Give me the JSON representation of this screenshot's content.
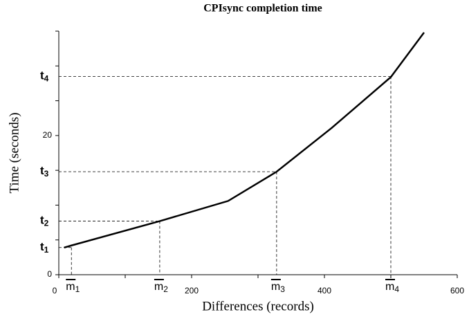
{
  "chart_data": {
    "type": "line",
    "title": "CPIsync completion time",
    "xlabel": "Differences (records)",
    "ylabel": "Time (seconds)",
    "x": [
      8,
      19,
      152,
      255,
      328,
      411,
      500,
      550
    ],
    "series": [
      {
        "name": "CPIsync",
        "color": "#000000",
        "values": [
          3.9,
          4.2,
          7.7,
          10.6,
          14.8,
          21.1,
          28.4,
          34.8
        ]
      }
    ],
    "xlim": [
      0,
      600
    ],
    "xticks": [
      0,
      200,
      400,
      600
    ],
    "xminorticks": [
      100,
      300,
      500
    ],
    "ylim": [
      0,
      35
    ],
    "yticks": [
      0,
      20
    ],
    "yminorticks": [
      5,
      10,
      15,
      25,
      30,
      35
    ],
    "annotations": [
      {
        "t": "t",
        "t_sub": "1",
        "m": "m",
        "m_sub": "1",
        "x": 19,
        "y": 3.9
      },
      {
        "t": "t",
        "t_sub": "2",
        "m": "m",
        "m_sub": "2",
        "x": 152,
        "y": 7.7
      },
      {
        "t": "t",
        "t_sub": "3",
        "m": "m",
        "m_sub": "3",
        "x": 328,
        "y": 14.8
      },
      {
        "t": "t",
        "t_sub": "4",
        "m": "m",
        "m_sub": "4",
        "x": 500,
        "y": 28.5
      }
    ]
  }
}
